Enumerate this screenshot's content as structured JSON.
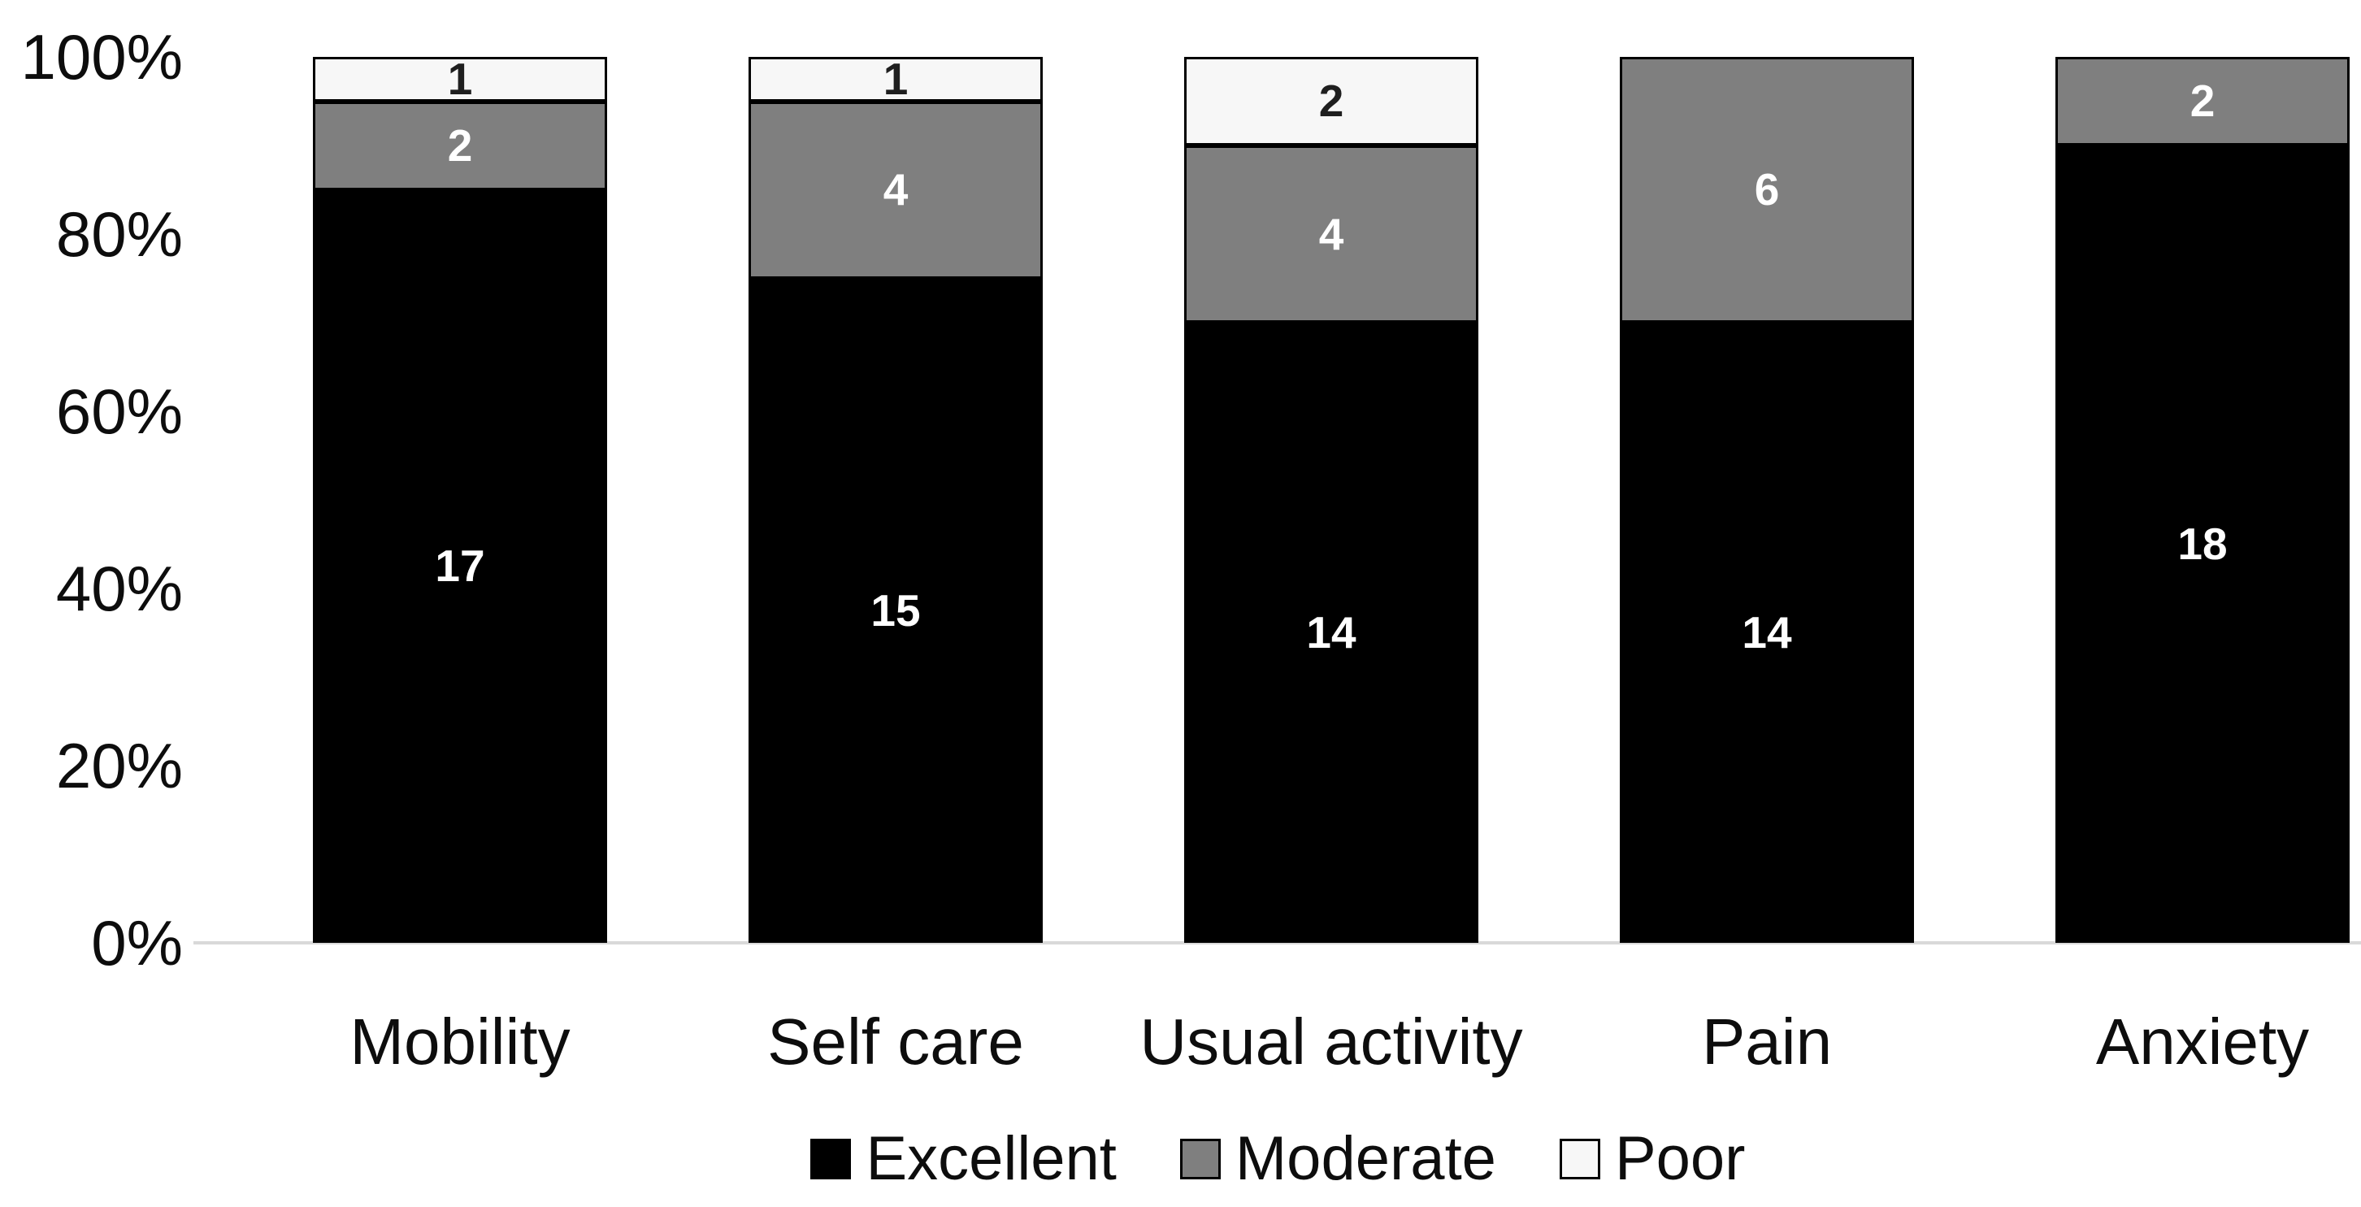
{
  "chart_data": {
    "type": "bar",
    "variant": "stacked-100-percent-column",
    "title": "",
    "xlabel": "",
    "ylabel": "",
    "categories": [
      "Mobility",
      "Self care",
      "Usual activity",
      "Pain",
      "Anxiety"
    ],
    "series": [
      {
        "name": "Excellent",
        "color": "#000000",
        "label_color": "#ffffff",
        "values": [
          17,
          15,
          14,
          14,
          18
        ]
      },
      {
        "name": "Moderate",
        "color": "#7f7f7f",
        "label_color": "#ffffff",
        "values": [
          2,
          4,
          4,
          6,
          2
        ]
      },
      {
        "name": "Poor",
        "color": "#f7f7f7",
        "label_color": "#1f1f1f",
        "values": [
          1,
          1,
          2,
          0,
          0
        ]
      }
    ],
    "category_totals": [
      20,
      20,
      20,
      20,
      20
    ],
    "y_ticks": [
      "100%",
      "80%",
      "60%",
      "40%",
      "20%",
      "0%"
    ],
    "ylim": [
      0,
      100
    ],
    "grid": false,
    "legend_position": "bottom",
    "bar_border_color": "#000000",
    "axis_line_color": "#d9d9d9",
    "background": "#ffffff"
  }
}
